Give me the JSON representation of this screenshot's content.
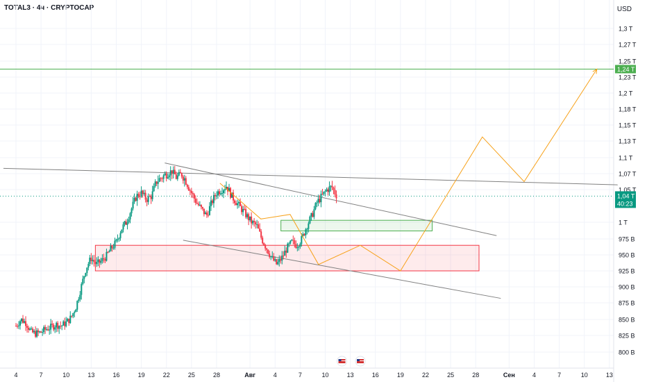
{
  "header": {
    "symbol_line": "TOTAL3 · 4ч · CRYPTOCAP",
    "currency": "USD"
  },
  "chart_data": {
    "type": "candlestick",
    "title": "TOTAL3 · 4ч · CRYPTOCAP",
    "ylabel": "USD",
    "y_ticks": [
      {
        "label": "1,3 T",
        "v": 1.3
      },
      {
        "label": "1,27 T",
        "v": 1.27
      },
      {
        "label": "1,25 T",
        "v": 1.25
      },
      {
        "label": "1,23 T",
        "v": 1.23
      },
      {
        "label": "1,2 T",
        "v": 1.2
      },
      {
        "label": "1,18 T",
        "v": 1.18
      },
      {
        "label": "1,15 T",
        "v": 1.15
      },
      {
        "label": "1,13 T",
        "v": 1.13
      },
      {
        "label": "1,1 T",
        "v": 1.1
      },
      {
        "label": "1,07 T",
        "v": 1.07
      },
      {
        "label": "1,05 T",
        "v": 1.05
      },
      {
        "label": "1 T",
        "v": 1.0
      },
      {
        "label": "975 B",
        "v": 0.975
      },
      {
        "label": "950 B",
        "v": 0.95
      },
      {
        "label": "925 B",
        "v": 0.925
      },
      {
        "label": "900 B",
        "v": 0.9
      },
      {
        "label": "875 B",
        "v": 0.875
      },
      {
        "label": "850 B",
        "v": 0.85
      },
      {
        "label": "825 B",
        "v": 0.825
      },
      {
        "label": "800 B",
        "v": 0.8
      }
    ],
    "x_ticks": [
      {
        "label": "4",
        "d": 0
      },
      {
        "label": "7",
        "d": 3
      },
      {
        "label": "10",
        "d": 6
      },
      {
        "label": "13",
        "d": 9
      },
      {
        "label": "16",
        "d": 12
      },
      {
        "label": "19",
        "d": 15
      },
      {
        "label": "22",
        "d": 18
      },
      {
        "label": "25",
        "d": 21
      },
      {
        "label": "28",
        "d": 24
      },
      {
        "label": "Авг",
        "d": 28
      },
      {
        "label": "4",
        "d": 31
      },
      {
        "label": "7",
        "d": 34
      },
      {
        "label": "10",
        "d": 37
      },
      {
        "label": "13",
        "d": 40
      },
      {
        "label": "16",
        "d": 43
      },
      {
        "label": "19",
        "d": 46
      },
      {
        "label": "22",
        "d": 49
      },
      {
        "label": "25",
        "d": 52
      },
      {
        "label": "28",
        "d": 55
      },
      {
        "label": "Сен",
        "d": 59
      },
      {
        "label": "4",
        "d": 62
      },
      {
        "label": "7",
        "d": 65
      },
      {
        "label": "10",
        "d": 68
      },
      {
        "label": "13",
        "d": 71
      }
    ],
    "price_path": [
      [
        0,
        0.84
      ],
      [
        0.6,
        0.85
      ],
      [
        1.2,
        0.845
      ],
      [
        1.8,
        0.83
      ],
      [
        2.4,
        0.828
      ],
      [
        3,
        0.83
      ],
      [
        3.6,
        0.835
      ],
      [
        4.2,
        0.838
      ],
      [
        4.8,
        0.842
      ],
      [
        5.4,
        0.84
      ],
      [
        6,
        0.845
      ],
      [
        6.6,
        0.853
      ],
      [
        7.2,
        0.87
      ],
      [
        7.8,
        0.9
      ],
      [
        8.4,
        0.93
      ],
      [
        9,
        0.945
      ],
      [
        9.6,
        0.935
      ],
      [
        10.2,
        0.94
      ],
      [
        10.8,
        0.948
      ],
      [
        11.4,
        0.96
      ],
      [
        12,
        0.97
      ],
      [
        12.6,
        0.99
      ],
      [
        13.2,
        1.0
      ],
      [
        13.8,
        1.02
      ],
      [
        14.4,
        1.04
      ],
      [
        15,
        1.045
      ],
      [
        15.6,
        1.035
      ],
      [
        16.2,
        1.04
      ],
      [
        16.8,
        1.06
      ],
      [
        17.4,
        1.065
      ],
      [
        18,
        1.07
      ],
      [
        18.6,
        1.075
      ],
      [
        19.2,
        1.065
      ],
      [
        19.8,
        1.07
      ],
      [
        20.4,
        1.06
      ],
      [
        21,
        1.045
      ],
      [
        21.6,
        1.03
      ],
      [
        22.2,
        1.02
      ],
      [
        22.8,
        1.01
      ],
      [
        23.4,
        1.03
      ],
      [
        24,
        1.045
      ],
      [
        24.6,
        1.05
      ],
      [
        25.2,
        1.055
      ],
      [
        25.8,
        1.04
      ],
      [
        26.4,
        1.03
      ],
      [
        27,
        1.02
      ],
      [
        27.6,
        1.01
      ],
      [
        28.2,
        1.0
      ],
      [
        28.8,
        0.995
      ],
      [
        29.4,
        0.975
      ],
      [
        30,
        0.96
      ],
      [
        30.6,
        0.945
      ],
      [
        31.2,
        0.935
      ],
      [
        31.8,
        0.945
      ],
      [
        32.4,
        0.96
      ],
      [
        33,
        0.97
      ],
      [
        33.6,
        0.965
      ],
      [
        34.2,
        0.975
      ],
      [
        34.8,
        0.995
      ],
      [
        35.4,
        1.01
      ],
      [
        36,
        1.03
      ],
      [
        36.6,
        1.04
      ],
      [
        37.2,
        1.05
      ],
      [
        37.8,
        1.053
      ],
      [
        38.4,
        1.04
      ]
    ],
    "current_price": {
      "label": "1,04 T",
      "v": 1.04,
      "countdown": "40:23"
    },
    "target_price": {
      "label": "1,24 T",
      "v": 1.24
    },
    "zones": [
      {
        "name": "demand-zone",
        "d0": 9.5,
        "d1": 55.4,
        "top": 0.965,
        "bottom": 0.925,
        "color": "#f23645"
      },
      {
        "name": "support-zone",
        "d0": 31.7,
        "d1": 49.8,
        "top": 1.003,
        "bottom": 0.987,
        "color": "#4caf50"
      }
    ],
    "trendlines": [
      {
        "name": "upper-channel-line",
        "p": [
          [
            17.8,
            1.09
          ],
          [
            57.5,
            0.98
          ]
        ]
      },
      {
        "name": "lower-channel-line",
        "p": [
          [
            20,
            0.973
          ],
          [
            58,
            0.882
          ]
        ]
      },
      {
        "name": "resistance-line",
        "p": [
          [
            -1.5,
            1.08
          ],
          [
            72,
            1.056
          ]
        ]
      }
    ],
    "projection": [
      [
        24.4,
        1.058
      ],
      [
        29.3,
        1.005
      ],
      [
        32.8,
        1.012
      ],
      [
        36.2,
        0.935
      ],
      [
        41.2,
        0.965
      ],
      [
        46,
        0.925
      ],
      [
        55.8,
        1.135
      ],
      [
        60.8,
        1.06
      ],
      [
        69.5,
        1.24
      ]
    ],
    "event_markers": [
      {
        "d": 39,
        "icon": "us-flag-icon"
      },
      {
        "d": 41.2,
        "icon": "us-flag-icon"
      }
    ],
    "colors": {
      "up": "#089981",
      "down": "#f23645",
      "projection": "#f7a21b",
      "target": "#4caf50",
      "price": "#089981"
    }
  }
}
